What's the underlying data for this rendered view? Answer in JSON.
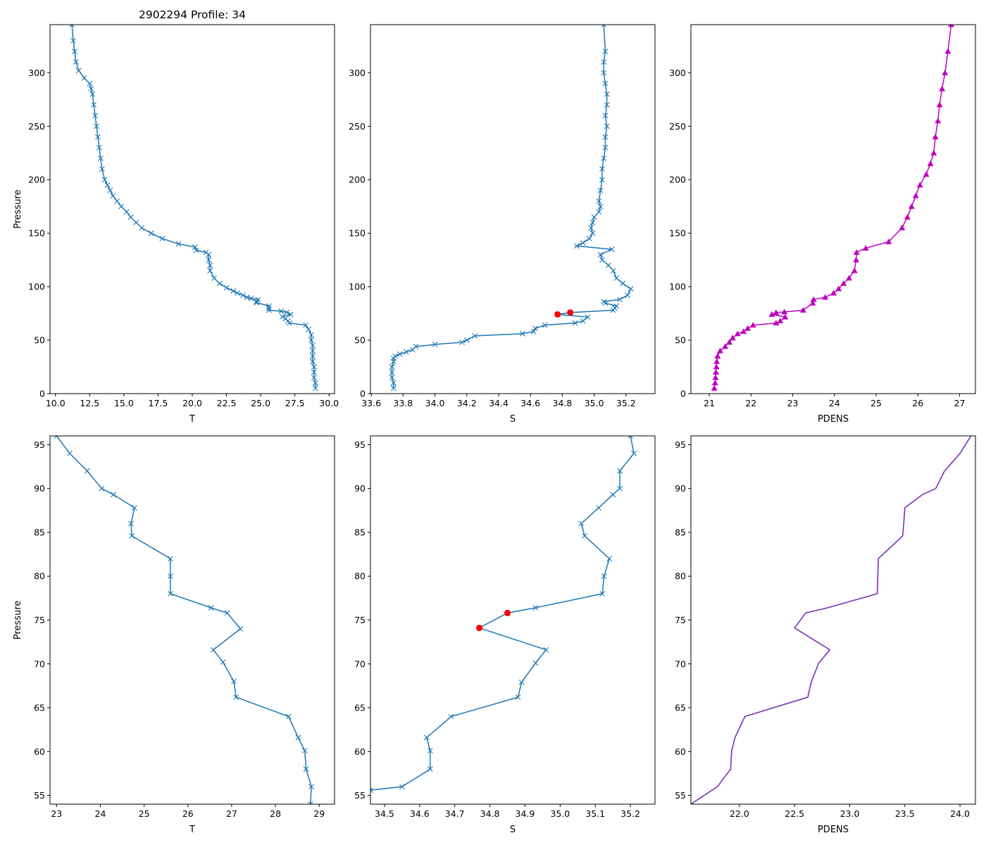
{
  "figure_title": "2902294 Profile: 34",
  "colors": {
    "series": "#1f77b4",
    "flag": "#ff0000",
    "density": "#bf00bf"
  },
  "chart_data": [
    {
      "type": "line",
      "name": "temperature-full",
      "title": "2902294 Profile: 34",
      "xlabel": "T",
      "ylabel": "Pressure",
      "xlim": [
        9.6,
        30.4
      ],
      "ylim": [
        345,
        0
      ],
      "xticks": [
        10.0,
        12.5,
        15.0,
        17.5,
        20.0,
        22.5,
        25.0,
        27.5,
        30.0
      ],
      "xtick_labels": [
        "10.0",
        "12.5",
        "15.0",
        "17.5",
        "20.0",
        "22.5",
        "25.0",
        "27.5",
        "30.0"
      ],
      "yticks": [
        0,
        50,
        100,
        150,
        200,
        250,
        300
      ],
      "ytick_labels": [
        "0",
        "50",
        "100",
        "150",
        "200",
        "250",
        "300"
      ],
      "marker": "x",
      "color": "#1f77b4",
      "x": [
        29.0,
        29.0,
        28.9,
        28.9,
        28.9,
        28.8,
        28.8,
        28.8,
        28.8,
        28.7,
        28.7,
        28.5,
        28.3,
        27.1,
        27.0,
        26.8,
        26.6,
        27.2,
        26.9,
        26.5,
        25.6,
        25.6,
        25.6,
        24.7,
        24.7,
        24.8,
        24.3,
        24.0,
        23.7,
        23.3,
        23.0,
        22.5,
        22.0,
        21.6,
        21.3,
        21.3,
        21.2,
        21.2,
        21.0,
        20.3,
        20.2,
        19.0,
        17.8,
        17.0,
        16.3,
        15.9,
        15.5,
        15.2,
        14.8,
        14.5,
        14.2,
        14.0,
        13.8,
        13.6,
        13.4,
        13.3,
        13.2,
        13.1,
        13.0,
        12.9,
        12.8,
        12.7,
        12.6,
        12.5,
        12.1,
        11.7,
        11.5,
        11.4,
        11.3,
        11.2
      ],
      "y": [
        5,
        10,
        15,
        20,
        25,
        30,
        35,
        40,
        45,
        50,
        55,
        60,
        64,
        66,
        68,
        70,
        72,
        74,
        76,
        77,
        78,
        80,
        82,
        85,
        86,
        88,
        89,
        90,
        92,
        94,
        96,
        99,
        103,
        108,
        115,
        120,
        125,
        130,
        132,
        134,
        137,
        140,
        145,
        150,
        155,
        160,
        165,
        170,
        175,
        180,
        185,
        190,
        195,
        200,
        210,
        220,
        230,
        240,
        250,
        260,
        270,
        280,
        285,
        290,
        295,
        302,
        310,
        320,
        330,
        345
      ]
    },
    {
      "type": "line",
      "name": "salinity-full",
      "title": "",
      "xlabel": "S",
      "ylabel": "",
      "xlim": [
        33.595,
        35.382
      ],
      "ylim": [
        345,
        0
      ],
      "xticks": [
        33.6,
        33.8,
        34.0,
        34.2,
        34.4,
        34.6,
        34.8,
        35.0,
        35.2
      ],
      "xtick_labels": [
        "33.6",
        "33.8",
        "34.0",
        "34.2",
        "34.4",
        "34.6",
        "34.8",
        "35.0",
        "35.2"
      ],
      "yticks": [
        0,
        50,
        100,
        150,
        200,
        250,
        300
      ],
      "ytick_labels": [
        "0",
        "50",
        "100",
        "150",
        "200",
        "250",
        "300"
      ],
      "marker": "x",
      "color": "#1f77b4",
      "x": [
        33.74,
        33.74,
        33.73,
        33.73,
        33.73,
        33.74,
        33.74,
        33.75,
        33.78,
        33.82,
        33.86,
        33.88,
        34.0,
        34.17,
        34.2,
        34.25,
        34.55,
        34.62,
        34.63,
        34.69,
        34.88,
        34.93,
        34.96,
        34.77,
        34.85,
        35.12,
        35.13,
        35.14,
        35.07,
        35.06,
        35.16,
        35.21,
        35.23,
        35.18,
        35.14,
        35.12,
        35.09,
        35.05,
        35.04,
        35.11,
        34.89,
        34.93,
        34.97,
        34.99,
        34.98,
        34.99,
        35.0,
        35.03,
        35.04,
        35.03,
        35.04,
        35.05,
        35.05,
        35.06,
        35.07,
        35.07,
        35.08,
        35.07,
        35.08,
        35.08,
        35.07,
        35.06,
        35.06,
        35.07,
        35.06
      ],
      "y": [
        5,
        10,
        15,
        20,
        25,
        30,
        33,
        35,
        37,
        39,
        41,
        44,
        46,
        48,
        50,
        54,
        56,
        58,
        61,
        64,
        66,
        68,
        71.6,
        74.1,
        75.8,
        78,
        80,
        82,
        84.6,
        86,
        88,
        92,
        98,
        103,
        108,
        115,
        120,
        125,
        130,
        135,
        138,
        141,
        145,
        150,
        155,
        160,
        165,
        170,
        175,
        180,
        190,
        200,
        210,
        220,
        230,
        240,
        250,
        260,
        270,
        280,
        290,
        300,
        310,
        320,
        345
      ],
      "flagged": {
        "x": [
          34.77,
          34.85
        ],
        "y": [
          74.1,
          75.8
        ],
        "color": "#ff0000"
      }
    },
    {
      "type": "line",
      "name": "density-full",
      "title": "",
      "xlabel": "PDENS",
      "ylabel": "",
      "xlim": [
        20.56,
        27.38
      ],
      "ylim": [
        345,
        0
      ],
      "xticks": [
        21,
        22,
        23,
        24,
        25,
        26,
        27
      ],
      "xtick_labels": [
        "21",
        "22",
        "23",
        "24",
        "25",
        "26",
        "27"
      ],
      "yticks": [
        0,
        50,
        100,
        150,
        200,
        250,
        300
      ],
      "ytick_labels": [
        "0",
        "50",
        "100",
        "150",
        "200",
        "250",
        "300"
      ],
      "marker": "triangle",
      "color": "#bf00bf",
      "x": [
        21.12,
        21.14,
        21.15,
        21.16,
        21.17,
        21.18,
        21.2,
        21.26,
        21.38,
        21.48,
        21.56,
        21.68,
        21.82,
        21.92,
        22.05,
        22.6,
        22.7,
        22.82,
        22.5,
        22.6,
        22.8,
        23.25,
        23.48,
        23.5,
        23.78,
        23.98,
        24.1,
        24.22,
        24.35,
        24.48,
        24.52,
        24.53,
        24.75,
        25.3,
        25.62,
        25.75,
        25.85,
        25.95,
        26.05,
        26.2,
        26.3,
        26.38,
        26.42,
        26.48,
        26.52,
        26.58,
        26.65,
        26.72,
        26.8
      ],
      "y": [
        5,
        10,
        15,
        20,
        25,
        30,
        35,
        40,
        44,
        48,
        52,
        56,
        58,
        61,
        64,
        66,
        68,
        71.6,
        74.1,
        75.8,
        76.4,
        78,
        84.6,
        88,
        90,
        94,
        98,
        103,
        108,
        115,
        125,
        132,
        136,
        142,
        155,
        165,
        175,
        185,
        195,
        205,
        215,
        225,
        240,
        255,
        270,
        285,
        300,
        320,
        345
      ]
    },
    {
      "type": "line",
      "name": "temperature-zoom",
      "title": "",
      "xlabel": "T",
      "ylabel": "Pressure",
      "xlim": [
        22.85,
        29.35
      ],
      "ylim": [
        96.0,
        54.0
      ],
      "xticks": [
        23,
        24,
        25,
        26,
        27,
        28,
        29
      ],
      "xtick_labels": [
        "23",
        "24",
        "25",
        "26",
        "27",
        "28",
        "29"
      ],
      "yticks": [
        55,
        60,
        65,
        70,
        75,
        80,
        85,
        90,
        95
      ],
      "ytick_labels": [
        "55",
        "60",
        "65",
        "70",
        "75",
        "80",
        "85",
        "90",
        "95"
      ],
      "marker": "x",
      "color": "#1f77b4",
      "x": [
        28.8,
        28.82,
        28.7,
        28.67,
        28.52,
        28.3,
        27.1,
        27.05,
        26.8,
        26.58,
        27.2,
        26.9,
        26.53,
        25.6,
        25.6,
        25.6,
        24.72,
        24.7,
        24.78,
        24.3,
        24.03,
        23.7,
        23.3,
        23.0
      ],
      "y": [
        54,
        56,
        58,
        60.1,
        61.6,
        64,
        66.2,
        68,
        70.2,
        71.6,
        74,
        75.8,
        76.4,
        78,
        80,
        82,
        84.6,
        86,
        87.8,
        89.3,
        90,
        92,
        94,
        96
      ]
    },
    {
      "type": "line",
      "name": "salinity-zoom",
      "title": "",
      "xlabel": "S",
      "ylabel": "",
      "xlim": [
        34.46,
        35.27
      ],
      "ylim": [
        96.0,
        54.0
      ],
      "xticks": [
        34.5,
        34.6,
        34.7,
        34.8,
        34.9,
        35.0,
        35.1,
        35.2
      ],
      "xtick_labels": [
        "34.5",
        "34.6",
        "34.7",
        "34.8",
        "34.9",
        "35.0",
        "35.1",
        "35.2"
      ],
      "yticks": [
        55,
        60,
        65,
        70,
        75,
        80,
        85,
        90,
        95
      ],
      "ytick_labels": [
        "55",
        "60",
        "65",
        "70",
        "75",
        "80",
        "85",
        "90",
        "95"
      ],
      "marker": "x",
      "color": "#1f77b4",
      "x": [
        34.46,
        34.55,
        34.63,
        34.63,
        34.62,
        34.69,
        34.88,
        34.89,
        34.93,
        34.96,
        34.77,
        34.85,
        34.93,
        35.12,
        35.125,
        35.14,
        35.07,
        35.06,
        35.11,
        35.15,
        35.17,
        35.17,
        35.21,
        35.2
      ],
      "y": [
        55.6,
        56,
        58,
        60.1,
        61.6,
        64,
        66.2,
        67.9,
        70.1,
        71.6,
        74.1,
        75.8,
        76.4,
        78,
        80,
        82,
        84.6,
        86,
        87.8,
        89.3,
        90,
        92,
        94,
        96
      ],
      "flagged": {
        "x": [
          34.77,
          34.85
        ],
        "y": [
          74.1,
          75.8
        ],
        "color": "#ff0000"
      }
    },
    {
      "type": "line",
      "name": "density-zoom",
      "title": "",
      "xlabel": "PDENS",
      "ylabel": "",
      "xlim": [
        21.56,
        24.14
      ],
      "ylim": [
        96.0,
        54.0
      ],
      "xticks": [
        22.0,
        22.5,
        23.0,
        23.5,
        24.0
      ],
      "xtick_labels": [
        "22.0",
        "22.5",
        "23.0",
        "23.5",
        "24.0"
      ],
      "yticks": [
        55,
        60,
        65,
        70,
        75,
        80,
        85,
        90,
        95
      ],
      "ytick_labels": [
        "55",
        "60",
        "65",
        "70",
        "75",
        "80",
        "85",
        "90",
        "95"
      ],
      "marker": "none",
      "color": "#bf00bf",
      "overlay_color": "#1f77b4",
      "x": [
        21.56,
        21.8,
        21.92,
        21.93,
        21.96,
        22.05,
        22.62,
        22.65,
        22.72,
        22.82,
        22.5,
        22.6,
        22.8,
        23.25,
        23.255,
        23.26,
        23.48,
        23.49,
        23.5,
        23.66,
        23.78,
        23.86,
        24.0,
        24.1
      ],
      "y": [
        54,
        56,
        58,
        60.1,
        61.6,
        64,
        66.2,
        67.9,
        70.1,
        71.6,
        74.1,
        75.8,
        76.4,
        78,
        80,
        82,
        84.6,
        86,
        87.8,
        89.3,
        90,
        92,
        94,
        96
      ]
    }
  ]
}
